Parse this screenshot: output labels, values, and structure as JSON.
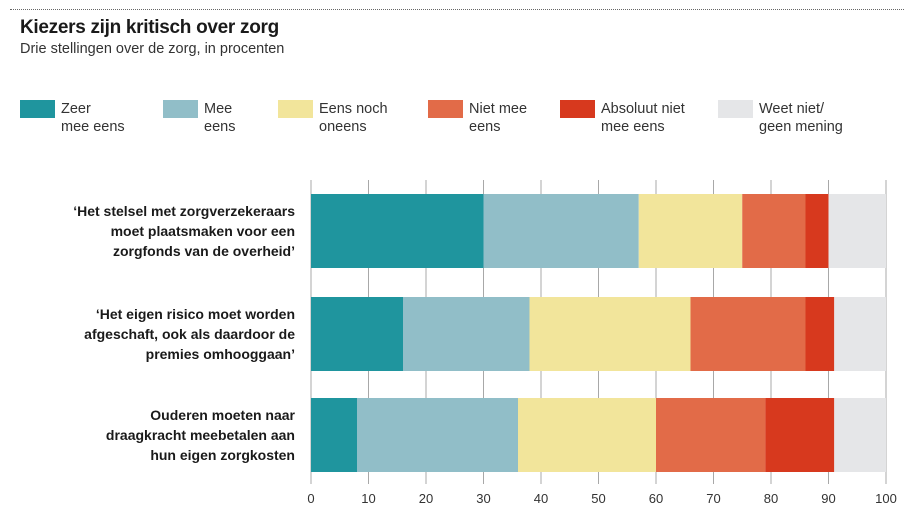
{
  "chart_data": {
    "type": "bar",
    "orientation": "horizontal",
    "stacked": true,
    "title": "Kiezers zijn kritisch over zorg",
    "subtitle": "Drie stellingen over de zorg, in procenten",
    "categories": [
      [
        "‘Het stelsel met zorgverzekeraars",
        "moet plaatsmaken voor een",
        "zorgfonds van de overheid’"
      ],
      [
        "‘Het eigen risico moet worden",
        "afgeschaft, ook als daardoor de",
        "premies omhooggaan’"
      ],
      [
        "Ouderen moeten naar",
        "draagkracht meebetalen aan",
        "hun eigen zorgkosten"
      ]
    ],
    "series": [
      {
        "name": "Zeer mee eens",
        "label_lines": [
          "Zeer",
          "mee eens"
        ],
        "color": "#1f959e",
        "values": [
          30,
          16,
          8
        ]
      },
      {
        "name": "Mee eens",
        "label_lines": [
          "Mee",
          "eens"
        ],
        "color": "#91bec8",
        "values": [
          27,
          22,
          28
        ]
      },
      {
        "name": "Eens noch oneens",
        "label_lines": [
          "Eens noch",
          "oneens"
        ],
        "color": "#f2e59b",
        "values": [
          18,
          28,
          24
        ]
      },
      {
        "name": "Niet mee eens",
        "label_lines": [
          "Niet mee",
          "eens"
        ],
        "color": "#e26b48",
        "values": [
          11,
          20,
          19
        ]
      },
      {
        "name": "Absoluut niet mee eens",
        "label_lines": [
          "Absoluut niet",
          "mee eens"
        ],
        "color": "#d7391e",
        "values": [
          4,
          5,
          12
        ]
      },
      {
        "name": "Weet niet/ geen mening",
        "label_lines": [
          "Weet niet/",
          "geen mening"
        ],
        "color": "#e5e6e8",
        "values": [
          10,
          9,
          9
        ]
      }
    ],
    "xlim": [
      0,
      100
    ],
    "xticks": [
      "0",
      "10",
      "20",
      "30",
      "40",
      "50",
      "60",
      "70",
      "80",
      "90",
      "100"
    ],
    "grid": true,
    "legend": "top"
  }
}
